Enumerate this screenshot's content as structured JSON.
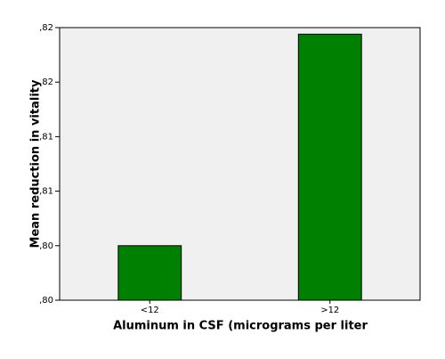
{
  "chart_data": {
    "type": "bar",
    "x_label": "Aluminum in CSF (micrograms per liter",
    "y_label": "Mean reduction in vitality",
    "categories": [
      "<12",
      ">12"
    ],
    "values": [
      0.805,
      0.8244
    ],
    "color": "#008000",
    "ylim": [
      0.8,
      0.825
    ],
    "yticks": [
      {
        "value": 0.8,
        "label": ",80"
      },
      {
        "value": 0.805,
        "label": ",80"
      },
      {
        "value": 0.81,
        "label": ",81"
      },
      {
        "value": 0.815,
        "label": ",81"
      },
      {
        "value": 0.82,
        "label": ",82"
      },
      {
        "value": 0.825,
        "label": ",82"
      }
    ],
    "grid": false
  }
}
